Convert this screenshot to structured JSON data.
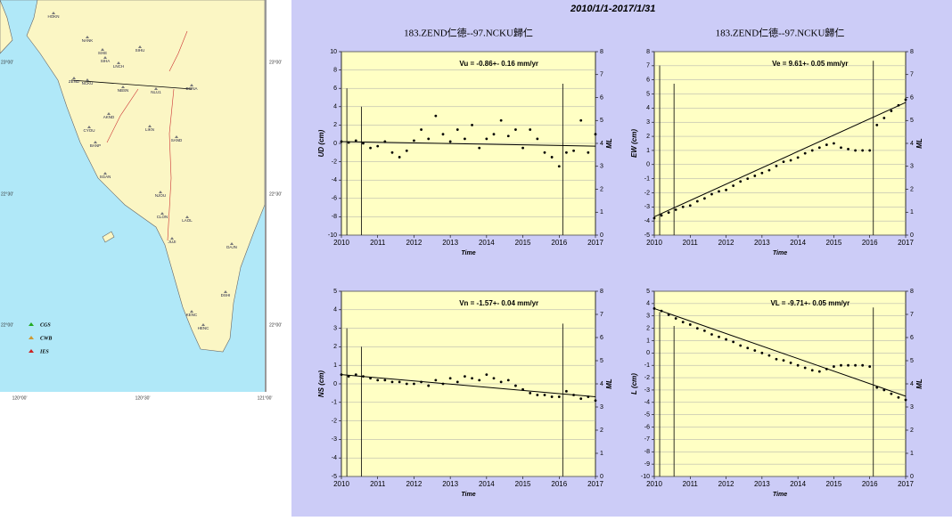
{
  "header": {
    "title": "2010/1/1-2017/1/31"
  },
  "map": {
    "stations": [
      "HOKN",
      "NANK",
      "SIXE",
      "SIHA",
      "LNCH",
      "SIHU",
      "ZEND",
      "NCKU",
      "NBSN",
      "NLU1",
      "DONA",
      "AKND",
      "CYOU",
      "LIKN",
      "SAND",
      "BANP",
      "SGAN",
      "NJOU",
      "CLON",
      "LAOL",
      "JUJI",
      "DAJN",
      "DSHI",
      "KENC",
      "HENC"
    ],
    "legend": [
      "CGS",
      "CWB",
      "IES"
    ],
    "lat_labels": [
      "23°00'",
      "22°30'",
      "22°00'"
    ],
    "lon_labels": [
      "120°00'",
      "120°30'",
      "121°00'"
    ]
  },
  "chart_data": [
    {
      "type": "scatter",
      "title": "183.ZEND仁德--97.NCKU歸仁",
      "annotation": "Vu = -0.86+- 0.16 mm/yr",
      "y_label": "UD (cm)",
      "x_label": "Time",
      "y2_label": "ML",
      "xlim": [
        2010,
        2017
      ],
      "xticks": [
        2010,
        2011,
        2012,
        2013,
        2014,
        2015,
        2016,
        2017
      ],
      "ylim": [
        -10,
        10
      ],
      "yticks": [
        -10,
        -8,
        -6,
        -4,
        -2,
        0,
        2,
        4,
        6,
        8,
        10
      ],
      "y2lim": [
        0,
        8
      ],
      "y2ticks": [
        0,
        1,
        2,
        3,
        4,
        5,
        6,
        7,
        8
      ],
      "grid": true,
      "points": {
        "color": "#000000",
        "x": [
          2010.0,
          2010.2,
          2010.4,
          2010.6,
          2010.8,
          2011.0,
          2011.2,
          2011.4,
          2011.6,
          2011.8,
          2012.0,
          2012.2,
          2012.4,
          2012.6,
          2012.8,
          2013.0,
          2013.2,
          2013.4,
          2013.6,
          2013.8,
          2014.0,
          2014.2,
          2014.4,
          2014.6,
          2014.8,
          2015.0,
          2015.2,
          2015.4,
          2015.6,
          2015.8,
          2016.0,
          2016.2,
          2016.4,
          2016.6,
          2016.8,
          2017.0
        ],
        "values": [
          0.2,
          0.1,
          0.3,
          0.0,
          -0.5,
          -0.3,
          0.2,
          -1.0,
          -1.5,
          -0.8,
          0.3,
          1.5,
          0.5,
          3.0,
          1.0,
          0.2,
          1.5,
          0.5,
          2.0,
          -0.5,
          0.5,
          1.0,
          2.5,
          0.8,
          1.5,
          -0.5,
          1.5,
          0.5,
          -1.0,
          -1.5,
          -2.5,
          -1.0,
          -0.8,
          2.5,
          -1.0,
          1.0
        ]
      },
      "trend": {
        "color": "#000000",
        "x": [
          2010,
          2017
        ],
        "values": [
          0.2,
          -0.3
        ]
      },
      "events": {
        "color": "#000000",
        "axis": "y2",
        "x": [
          2010.15,
          2010.55,
          2016.1
        ],
        "values": [
          6.4,
          5.6,
          6.6
        ]
      }
    },
    {
      "type": "scatter",
      "title": "183.ZEND仁德--97.NCKU歸仁",
      "annotation": "Ve = 9.61+- 0.05 mm/yr",
      "y_label": "EW (cm)",
      "x_label": "Time",
      "y2_label": "ML",
      "xlim": [
        2010,
        2017
      ],
      "xticks": [
        2010,
        2011,
        2012,
        2013,
        2014,
        2015,
        2016,
        2017
      ],
      "ylim": [
        -5,
        8
      ],
      "yticks": [
        -5,
        -4,
        -3,
        -2,
        -1,
        0,
        1,
        2,
        3,
        4,
        5,
        6,
        7,
        8
      ],
      "y2lim": [
        0,
        8
      ],
      "y2ticks": [
        0,
        1,
        2,
        3,
        4,
        5,
        6,
        7,
        8
      ],
      "grid": true,
      "points": {
        "color": "#000000",
        "x": [
          2010.0,
          2010.2,
          2010.4,
          2010.6,
          2010.8,
          2011.0,
          2011.2,
          2011.4,
          2011.6,
          2011.8,
          2012.0,
          2012.2,
          2012.4,
          2012.6,
          2012.8,
          2013.0,
          2013.2,
          2013.4,
          2013.6,
          2013.8,
          2014.0,
          2014.2,
          2014.4,
          2014.6,
          2014.8,
          2015.0,
          2015.2,
          2015.4,
          2015.6,
          2015.8,
          2016.0,
          2016.2,
          2016.4,
          2016.6,
          2016.8,
          2017.0
        ],
        "values": [
          -3.8,
          -3.6,
          -3.4,
          -3.2,
          -3.0,
          -2.9,
          -2.6,
          -2.4,
          -2.1,
          -1.9,
          -1.8,
          -1.5,
          -1.2,
          -1.0,
          -0.8,
          -0.6,
          -0.4,
          -0.1,
          0.2,
          0.3,
          0.5,
          0.8,
          1.0,
          1.2,
          1.4,
          1.5,
          1.2,
          1.1,
          1.0,
          1.0,
          1.0,
          2.8,
          3.3,
          3.8,
          4.2,
          4.6
        ]
      },
      "trend": {
        "color": "#000000",
        "x": [
          2010,
          2017
        ],
        "values": [
          -3.7,
          4.4
        ]
      },
      "events": {
        "color": "#000000",
        "axis": "y2",
        "x": [
          2010.15,
          2010.55,
          2016.1
        ],
        "values": [
          7.4,
          6.6,
          7.6
        ]
      }
    },
    {
      "type": "scatter",
      "title": "",
      "annotation": "Vn = -1.57+- 0.04 mm/yr",
      "y_label": "NS (cm)",
      "x_label": "Time",
      "y2_label": "ML",
      "xlim": [
        2010,
        2017
      ],
      "xticks": [
        2010,
        2011,
        2012,
        2013,
        2014,
        2015,
        2016,
        2017
      ],
      "ylim": [
        -5,
        5
      ],
      "yticks": [
        -5,
        -4,
        -3,
        -2,
        -1,
        0,
        1,
        2,
        3,
        4,
        5
      ],
      "y2lim": [
        0,
        8
      ],
      "y2ticks": [
        0,
        1,
        2,
        3,
        4,
        5,
        6,
        7,
        8
      ],
      "grid": true,
      "points": {
        "color": "#000000",
        "x": [
          2010.0,
          2010.2,
          2010.4,
          2010.6,
          2010.8,
          2011.0,
          2011.2,
          2011.4,
          2011.6,
          2011.8,
          2012.0,
          2012.2,
          2012.4,
          2012.6,
          2012.8,
          2013.0,
          2013.2,
          2013.4,
          2013.6,
          2013.8,
          2014.0,
          2014.2,
          2014.4,
          2014.6,
          2014.8,
          2015.0,
          2015.2,
          2015.4,
          2015.6,
          2015.8,
          2016.0,
          2016.2,
          2016.4,
          2016.6,
          2016.8,
          2017.0
        ],
        "values": [
          0.5,
          0.4,
          0.5,
          0.4,
          0.3,
          0.2,
          0.2,
          0.1,
          0.1,
          0.0,
          0.0,
          0.1,
          -0.1,
          0.2,
          0.0,
          0.3,
          0.1,
          0.4,
          0.3,
          0.2,
          0.5,
          0.3,
          0.1,
          0.2,
          -0.1,
          -0.3,
          -0.5,
          -0.6,
          -0.6,
          -0.7,
          -0.7,
          -0.4,
          -0.6,
          -0.8,
          -0.7,
          -0.9
        ]
      },
      "trend": {
        "color": "#000000",
        "x": [
          2010,
          2017
        ],
        "values": [
          0.5,
          -0.7
        ]
      },
      "events": {
        "color": "#000000",
        "axis": "y2",
        "x": [
          2010.15,
          2010.55,
          2016.1
        ],
        "values": [
          6.4,
          5.6,
          6.6
        ]
      }
    },
    {
      "type": "scatter",
      "title": "",
      "annotation": "VL = -9.71+- 0.05 mm/yr",
      "y_label": "L (cm)",
      "x_label": "Time",
      "y2_label": "ML",
      "xlim": [
        2010,
        2017
      ],
      "xticks": [
        2010,
        2011,
        2012,
        2013,
        2014,
        2015,
        2016,
        2017
      ],
      "ylim": [
        -10,
        5
      ],
      "yticks": [
        -10,
        -9,
        -8,
        -7,
        -6,
        -5,
        -4,
        -3,
        -2,
        -1,
        0,
        1,
        2,
        3,
        4,
        5
      ],
      "y2lim": [
        0,
        8
      ],
      "y2ticks": [
        0,
        1,
        2,
        3,
        4,
        5,
        6,
        7,
        8
      ],
      "grid": true,
      "points": {
        "color": "#000000",
        "x": [
          2010.0,
          2010.2,
          2010.4,
          2010.6,
          2010.8,
          2011.0,
          2011.2,
          2011.4,
          2011.6,
          2011.8,
          2012.0,
          2012.2,
          2012.4,
          2012.6,
          2012.8,
          2013.0,
          2013.2,
          2013.4,
          2013.6,
          2013.8,
          2014.0,
          2014.2,
          2014.4,
          2014.6,
          2014.8,
          2015.0,
          2015.2,
          2015.4,
          2015.6,
          2015.8,
          2016.0,
          2016.2,
          2016.4,
          2016.6,
          2016.8,
          2017.0
        ],
        "values": [
          3.6,
          3.4,
          3.1,
          2.8,
          2.5,
          2.3,
          2.0,
          1.8,
          1.5,
          1.3,
          1.1,
          0.9,
          0.6,
          0.4,
          0.2,
          0.0,
          -0.2,
          -0.5,
          -0.6,
          -0.8,
          -1.0,
          -1.2,
          -1.4,
          -1.5,
          -1.3,
          -1.1,
          -1.0,
          -1.0,
          -1.0,
          -1.0,
          -1.1,
          -2.8,
          -3.0,
          -3.3,
          -3.6,
          -3.8
        ]
      },
      "trend": {
        "color": "#000000",
        "x": [
          2010,
          2017
        ],
        "values": [
          3.6,
          -3.5
        ]
      },
      "events": {
        "color": "#000000",
        "axis": "y2",
        "x": [
          2010.15,
          2010.55,
          2016.1
        ],
        "values": [
          7.1,
          6.5,
          7.3
        ]
      }
    }
  ]
}
